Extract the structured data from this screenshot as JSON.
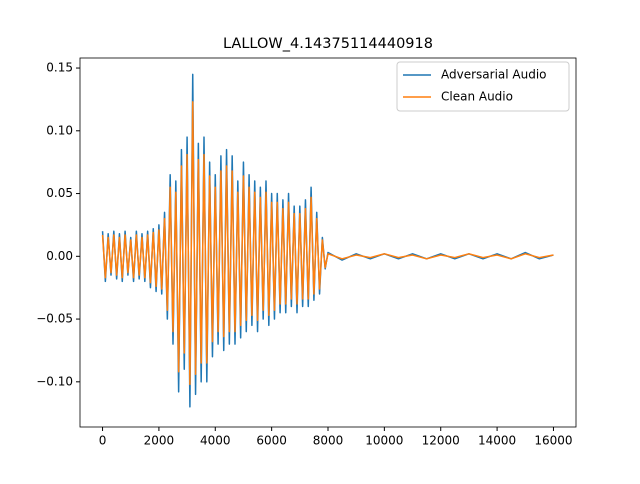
{
  "chart_data": {
    "type": "line",
    "title": "LALLOW_4.14375114440918",
    "x": [
      0,
      100,
      200,
      300,
      400,
      500,
      600,
      700,
      800,
      900,
      1000,
      1100,
      1200,
      1300,
      1400,
      1500,
      1600,
      1700,
      1800,
      1900,
      2000,
      2100,
      2200,
      2300,
      2400,
      2500,
      2600,
      2700,
      2800,
      2900,
      3000,
      3100,
      3200,
      3300,
      3400,
      3500,
      3600,
      3700,
      3800,
      3900,
      4000,
      4100,
      4200,
      4300,
      4400,
      4500,
      4600,
      4700,
      4800,
      4900,
      5000,
      5100,
      5200,
      5300,
      5400,
      5500,
      5600,
      5700,
      5800,
      5900,
      6000,
      6100,
      6200,
      6300,
      6400,
      6500,
      6600,
      6700,
      6800,
      6900,
      7000,
      7100,
      7200,
      7300,
      7400,
      7500,
      7600,
      7700,
      7800,
      7900,
      8000,
      8500,
      9000,
      9500,
      10000,
      10500,
      11000,
      11500,
      12000,
      12500,
      13000,
      13500,
      14000,
      14500,
      15000,
      15500,
      16000
    ],
    "series": [
      {
        "name": "Adversarial Audio",
        "color": "#1f77b4",
        "values": [
          0.02,
          -0.02,
          0.018,
          -0.015,
          0.02,
          -0.018,
          0.018,
          -0.02,
          0.02,
          -0.015,
          0.015,
          -0.02,
          0.02,
          -0.018,
          0.018,
          -0.02,
          0.02,
          -0.025,
          0.022,
          -0.028,
          0.025,
          -0.03,
          0.035,
          -0.05,
          0.065,
          -0.07,
          0.06,
          -0.108,
          0.085,
          -0.09,
          0.095,
          -0.12,
          0.145,
          -0.11,
          0.09,
          -0.1,
          0.095,
          -0.1,
          0.075,
          -0.08,
          0.065,
          -0.07,
          0.08,
          -0.075,
          0.085,
          -0.07,
          0.08,
          -0.07,
          0.06,
          -0.065,
          0.075,
          -0.06,
          0.065,
          -0.055,
          0.06,
          -0.06,
          0.055,
          -0.05,
          0.06,
          -0.055,
          0.05,
          -0.05,
          0.05,
          -0.045,
          0.045,
          -0.045,
          0.05,
          -0.04,
          0.04,
          -0.045,
          0.04,
          -0.04,
          0.045,
          -0.04,
          0.055,
          -0.035,
          0.035,
          -0.03,
          0.015,
          -0.01,
          0.003,
          -0.003,
          0.002,
          -0.002,
          0.002,
          -0.002,
          0.002,
          -0.002,
          0.002,
          -0.002,
          0.002,
          -0.002,
          0.002,
          -0.002,
          0.003,
          -0.002,
          0.001
        ]
      },
      {
        "name": "Clean Audio",
        "color": "#ff7f0e",
        "values": [
          0.017,
          -0.017,
          0.015,
          -0.013,
          0.017,
          -0.015,
          0.015,
          -0.017,
          0.017,
          -0.013,
          0.013,
          -0.017,
          0.017,
          -0.015,
          0.015,
          -0.017,
          0.017,
          -0.021,
          0.019,
          -0.024,
          0.021,
          -0.026,
          0.03,
          -0.043,
          0.055,
          -0.06,
          0.051,
          -0.092,
          0.072,
          -0.077,
          0.081,
          -0.102,
          0.123,
          -0.094,
          0.077,
          -0.085,
          0.081,
          -0.085,
          0.064,
          -0.068,
          0.055,
          -0.06,
          0.068,
          -0.064,
          0.072,
          -0.06,
          0.068,
          -0.06,
          0.051,
          -0.055,
          0.064,
          -0.051,
          0.055,
          -0.047,
          0.051,
          -0.051,
          0.047,
          -0.043,
          0.051,
          -0.047,
          0.043,
          -0.043,
          0.043,
          -0.038,
          0.038,
          -0.038,
          0.043,
          -0.034,
          0.034,
          -0.038,
          0.034,
          -0.034,
          0.038,
          -0.034,
          0.047,
          -0.03,
          0.03,
          -0.026,
          0.013,
          -0.009,
          0.002,
          -0.002,
          0.001,
          -0.001,
          0.002,
          -0.001,
          0.001,
          -0.002,
          0.001,
          -0.001,
          0.002,
          -0.001,
          0.001,
          -0.002,
          0.002,
          -0.001,
          0.001
        ]
      }
    ],
    "xlim": [
      -800,
      16800
    ],
    "ylim": [
      -0.136,
      0.158
    ],
    "xticks": [
      0,
      2000,
      4000,
      6000,
      8000,
      10000,
      12000,
      14000,
      16000
    ],
    "yticks": [
      {
        "value": -0.1,
        "label": "−0.10"
      },
      {
        "value": -0.05,
        "label": "−0.05"
      },
      {
        "value": 0,
        "label": "0.00"
      },
      {
        "value": 0.05,
        "label": "0.05"
      },
      {
        "value": 0.1,
        "label": "0.10"
      },
      {
        "value": 0.15,
        "label": "0.15"
      }
    ],
    "grid": false,
    "legend": "upper right"
  }
}
